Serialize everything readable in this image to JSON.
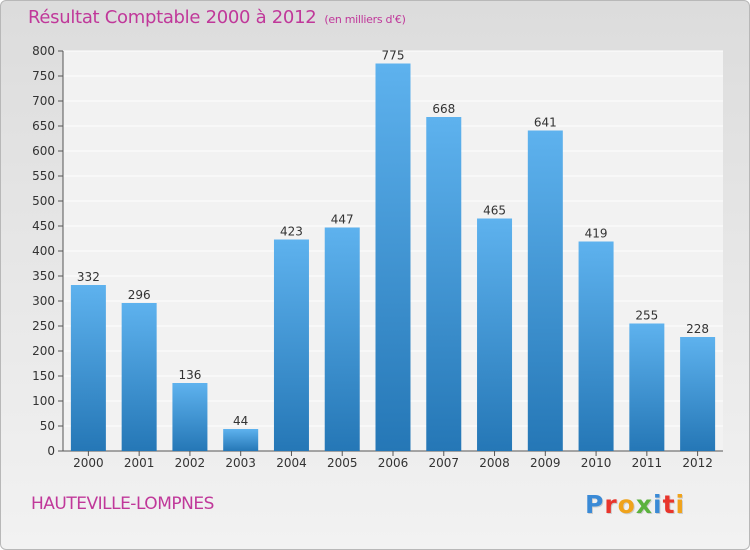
{
  "header": {
    "title": "Résultat Comptable 2000 à 2012",
    "subtitle": "(en milliers d'€)"
  },
  "footer": {
    "city": "HAUTEVILLE-LOMPNES",
    "logo": "Proxiti",
    "logo_colors": [
      "#3a8ad6",
      "#e8352c",
      "#f0a31b",
      "#5bb23d",
      "#3a8ad6",
      "#e8352c",
      "#f0a31b"
    ]
  },
  "colors": {
    "title": "#c0389a",
    "bar_top": "#5eb2ee",
    "bar_bottom": "#2577b6",
    "plot_background": "#f2f2f2",
    "grid": "#ffffff"
  },
  "chart_data": {
    "type": "bar",
    "title": "Résultat Comptable 2000 à 2012",
    "subtitle": "(en milliers d'€)",
    "categories": [
      "2000",
      "2001",
      "2002",
      "2003",
      "2004",
      "2005",
      "2006",
      "2007",
      "2008",
      "2009",
      "2010",
      "2011",
      "2012"
    ],
    "values": [
      332,
      296,
      136,
      44,
      423,
      447,
      775,
      668,
      465,
      641,
      419,
      255,
      228
    ],
    "ylim": [
      0,
      800
    ],
    "yticks": [
      0,
      50,
      100,
      150,
      200,
      250,
      300,
      350,
      400,
      450,
      500,
      550,
      600,
      650,
      700,
      750,
      800
    ],
    "grid": true,
    "data_labels": true
  }
}
